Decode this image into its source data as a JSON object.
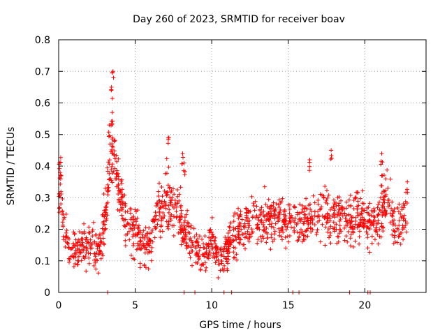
{
  "chart_data": {
    "type": "scatter",
    "title": "Day 260 of 2023, SRMTID for receiver boav",
    "xlabel": "GPS time / hours",
    "ylabel": "SRMTID / TECUs",
    "xlim": [
      0,
      24
    ],
    "ylim": [
      0,
      0.8
    ],
    "xticks": [
      0,
      5,
      10,
      15,
      20
    ],
    "xtick_labels": [
      "0",
      "5",
      "10",
      "15",
      "20"
    ],
    "yticks": [
      0,
      0.1,
      0.2,
      0.3,
      0.4,
      0.5,
      0.6,
      0.7,
      0.8
    ],
    "ytick_labels": [
      "0",
      "0.1",
      "0.2",
      "0.3",
      "0.4",
      "0.5",
      "0.6",
      "0.7",
      "0.8"
    ],
    "grid": true,
    "marker": "+",
    "color": "#ff0000",
    "series": [
      {
        "name": "SRMTID",
        "note": "approximate trend of the dense '+' cloud (hour, TECU) with spread",
        "trend": [
          [
            0.0,
            0.27
          ],
          [
            0.1,
            0.36
          ],
          [
            0.3,
            0.22
          ],
          [
            0.6,
            0.15
          ],
          [
            1.0,
            0.13
          ],
          [
            1.5,
            0.15
          ],
          [
            2.0,
            0.16
          ],
          [
            2.5,
            0.13
          ],
          [
            3.0,
            0.22
          ],
          [
            3.3,
            0.4
          ],
          [
            3.6,
            0.45
          ],
          [
            4.0,
            0.3
          ],
          [
            4.5,
            0.22
          ],
          [
            5.0,
            0.2
          ],
          [
            5.5,
            0.15
          ],
          [
            6.0,
            0.15
          ],
          [
            6.5,
            0.25
          ],
          [
            7.0,
            0.3
          ],
          [
            7.5,
            0.28
          ],
          [
            8.0,
            0.22
          ],
          [
            8.5,
            0.18
          ],
          [
            9.0,
            0.13
          ],
          [
            9.5,
            0.12
          ],
          [
            10.0,
            0.16
          ],
          [
            10.5,
            0.1
          ],
          [
            11.0,
            0.14
          ],
          [
            11.5,
            0.18
          ],
          [
            12.0,
            0.2
          ],
          [
            13.0,
            0.22
          ],
          [
            14.0,
            0.23
          ],
          [
            15.0,
            0.22
          ],
          [
            16.0,
            0.22
          ],
          [
            17.0,
            0.25
          ],
          [
            18.0,
            0.24
          ],
          [
            19.0,
            0.23
          ],
          [
            20.0,
            0.24
          ],
          [
            20.5,
            0.2
          ],
          [
            21.0,
            0.22
          ],
          [
            21.5,
            0.3
          ],
          [
            22.0,
            0.22
          ],
          [
            22.5,
            0.23
          ],
          [
            22.8,
            0.27
          ]
        ],
        "peaks": [
          [
            0.05,
            0.41
          ],
          [
            3.55,
            0.7
          ],
          [
            3.45,
            0.65
          ],
          [
            3.5,
            0.57
          ],
          [
            3.3,
            0.53
          ],
          [
            7.2,
            0.49
          ],
          [
            8.1,
            0.44
          ],
          [
            8.2,
            0.41
          ],
          [
            16.4,
            0.42
          ],
          [
            17.8,
            0.45
          ],
          [
            21.1,
            0.44
          ],
          [
            21.1,
            0.37
          ]
        ],
        "zero_markers": [
          3.2,
          8.2,
          8.9,
          10.8,
          11.3,
          15.3,
          15.7,
          19.0,
          20.2,
          20.35
        ]
      }
    ]
  }
}
